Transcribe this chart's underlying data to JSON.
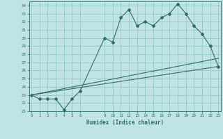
{
  "xlabel": "Humidex (Indice chaleur)",
  "hours": [
    0,
    1,
    2,
    3,
    4,
    5,
    6,
    9,
    10,
    11,
    12,
    13,
    14,
    15,
    16,
    17,
    18,
    19,
    20,
    21,
    22,
    23
  ],
  "humidex": [
    23,
    22.5,
    22.5,
    22.5,
    21.2,
    22.5,
    23.5,
    30,
    29.5,
    32.5,
    33.5,
    31.5,
    32,
    31.5,
    32.5,
    33,
    34.2,
    33,
    31.5,
    30.5,
    29,
    26.5
  ],
  "trend1_x": [
    0,
    23
  ],
  "trend1_y": [
    23.0,
    26.5
  ],
  "trend2_x": [
    0,
    23
  ],
  "trend2_y": [
    23.0,
    27.5
  ],
  "ylim": [
    21,
    34.5
  ],
  "xlim": [
    -0.3,
    23.3
  ],
  "yticks": [
    21,
    22,
    23,
    24,
    25,
    26,
    27,
    28,
    29,
    30,
    31,
    32,
    33,
    34
  ],
  "xticks": [
    0,
    1,
    2,
    3,
    4,
    5,
    6,
    9,
    10,
    11,
    12,
    13,
    14,
    15,
    16,
    17,
    18,
    19,
    20,
    21,
    22,
    23
  ],
  "main_color": "#2E6B6B",
  "bg_color": "#C0E4E4",
  "grid_color": "#89C4C4"
}
